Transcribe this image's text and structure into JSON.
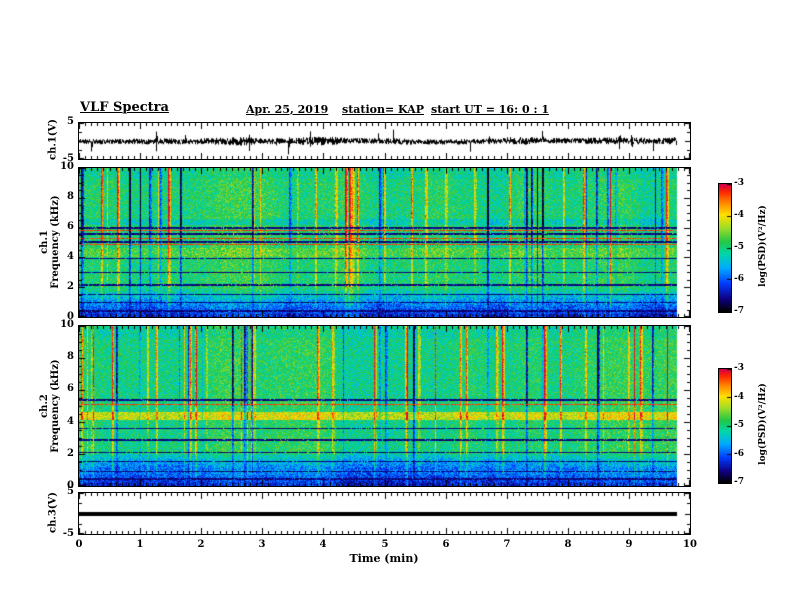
{
  "header": {
    "title": "VLF Spectra",
    "date": "Apr. 25, 2019",
    "station_label": "station= KAP",
    "start_ut_label": "start UT =  16: 0 : 1"
  },
  "chart_data": {
    "type": "heatmap",
    "title": "VLF Spectra",
    "xlabel": "Time (min)",
    "x_range": [
      0,
      10
    ],
    "x_ticks": [
      0,
      1,
      2,
      3,
      4,
      5,
      6,
      7,
      8,
      9,
      10
    ],
    "data_end_min": 9.78,
    "colorbar": {
      "label": "log(PSD)(V²/Hz)",
      "ticks": [
        -3,
        -4,
        -5,
        -6,
        -7
      ],
      "range": [
        -7,
        -3
      ]
    },
    "panels": [
      {
        "id": "ch1-wave",
        "kind": "waveform",
        "ylabel": "ch.1(V)",
        "y_range": [
          -5,
          5
        ],
        "y_ticks": [
          5,
          -5
        ],
        "seed": 11,
        "typ_amp_v": 1.2,
        "spike_amp_v": 3.5
      },
      {
        "id": "ch1-spec",
        "kind": "spectrogram",
        "ylabel_ch": "ch.1",
        "ylabel_freq": "Frequency (kHz)",
        "y_range": [
          0,
          10
        ],
        "y_ticks": [
          0,
          2,
          4,
          6,
          8,
          10
        ],
        "seed": 21,
        "event_density": 0.1,
        "event_strength": 0.5,
        "horizontal_lines_khz": [
          {
            "f": 6.0,
            "tone": "dark",
            "w": 2
          },
          {
            "f": 5.8,
            "tone": "red",
            "w": 1
          },
          {
            "f": 5.55,
            "tone": "dark",
            "w": 2
          },
          {
            "f": 5.3,
            "tone": "red",
            "w": 1
          },
          {
            "f": 5.05,
            "tone": "dark",
            "w": 2
          },
          {
            "f": 4.85,
            "tone": "red",
            "w": 1
          },
          {
            "f": 3.95,
            "tone": "dark",
            "w": 1
          },
          {
            "f": 3.0,
            "tone": "dark",
            "w": 1
          },
          {
            "f": 2.15,
            "tone": "dark",
            "w": 2
          },
          {
            "f": 1.5,
            "tone": "dark",
            "w": 1
          },
          {
            "f": 0.95,
            "tone": "dark",
            "w": 1
          },
          {
            "f": 0.4,
            "tone": "dark",
            "w": 2
          }
        ],
        "bands": [
          {
            "f1": 4.0,
            "f2": 4.6,
            "boost": 0.07
          },
          {
            "f1": 6.15,
            "f2": 6.6,
            "boost": -0.07
          }
        ]
      },
      {
        "id": "ch2-spec",
        "kind": "spectrogram",
        "ylabel_ch": "ch.2",
        "ylabel_freq": "Frequency (kHz)",
        "y_range": [
          0,
          10
        ],
        "y_ticks": [
          0,
          2,
          4,
          6,
          8,
          10
        ],
        "seed": 22,
        "event_density": 0.09,
        "event_strength": 0.45,
        "horizontal_lines_khz": [
          {
            "f": 5.35,
            "tone": "dark",
            "w": 2
          },
          {
            "f": 5.1,
            "tone": "red",
            "w": 1
          },
          {
            "f": 3.6,
            "tone": "dark",
            "w": 1
          },
          {
            "f": 2.85,
            "tone": "dark",
            "w": 2
          },
          {
            "f": 2.1,
            "tone": "dark",
            "w": 1
          },
          {
            "f": 1.5,
            "tone": "dark",
            "w": 1
          },
          {
            "f": 0.9,
            "tone": "dark",
            "w": 1
          },
          {
            "f": 0.4,
            "tone": "dark",
            "w": 2
          }
        ],
        "bands": [
          {
            "f1": 4.15,
            "f2": 4.65,
            "boost": 0.2
          },
          {
            "f1": 1.0,
            "f2": 2.0,
            "boost": -0.05
          }
        ]
      },
      {
        "id": "ch3-wave",
        "kind": "flatline",
        "ylabel": "ch.3(V)",
        "y_range": [
          -5,
          5
        ],
        "y_ticks": [
          5,
          -5
        ],
        "value_v": 0,
        "thickness_px": 4
      }
    ],
    "colormap_stops": [
      [
        0.0,
        [
          0,
          0,
          0
        ]
      ],
      [
        0.1,
        [
          15,
          0,
          130
        ]
      ],
      [
        0.22,
        [
          0,
          60,
          255
        ]
      ],
      [
        0.34,
        [
          0,
          170,
          255
        ]
      ],
      [
        0.45,
        [
          0,
          215,
          170
        ]
      ],
      [
        0.55,
        [
          35,
          200,
          70
        ]
      ],
      [
        0.66,
        [
          160,
          220,
          40
        ]
      ],
      [
        0.76,
        [
          255,
          225,
          0
        ]
      ],
      [
        0.86,
        [
          255,
          130,
          0
        ]
      ],
      [
        0.94,
        [
          255,
          40,
          0
        ]
      ],
      [
        1.0,
        [
          210,
          0,
          70
        ]
      ]
    ]
  }
}
